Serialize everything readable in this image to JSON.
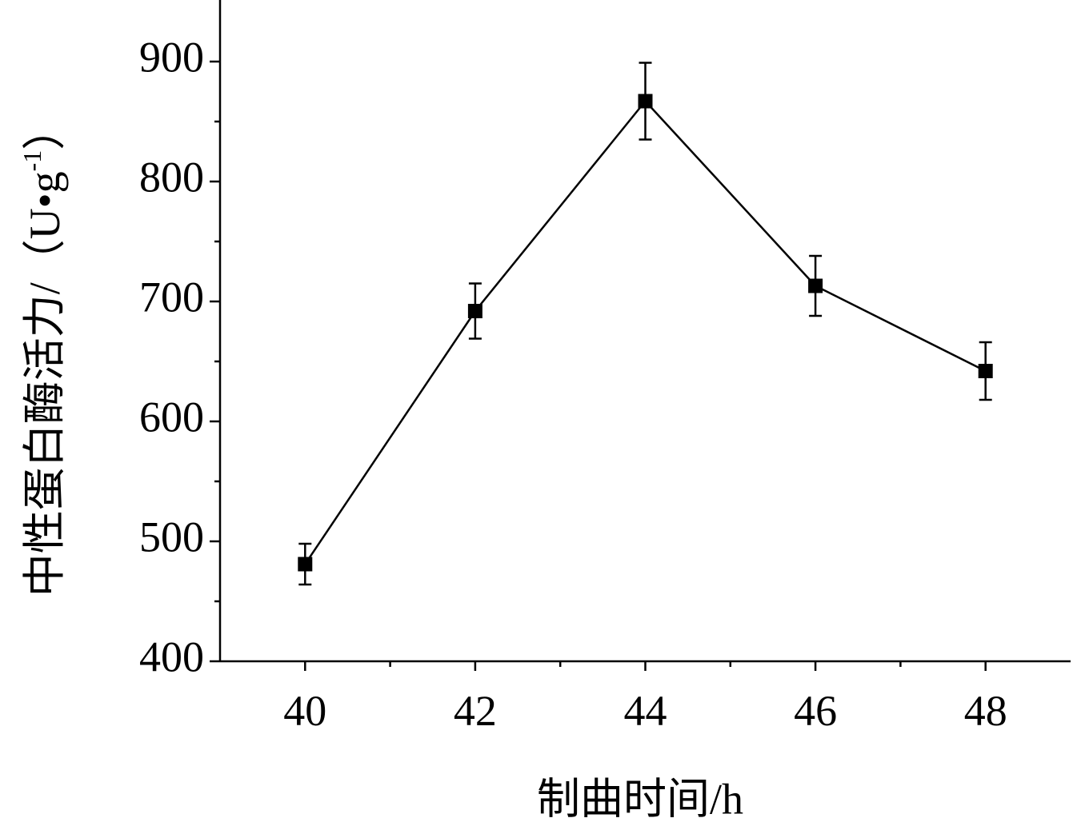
{
  "chart_data": {
    "type": "line",
    "xlabel": "制曲时间/h",
    "ylabel_parts": [
      "中性蛋白酶活力/（U•g",
      "-1",
      "）"
    ],
    "x": [
      40,
      42,
      44,
      46,
      48
    ],
    "series": [
      {
        "values": [
          481,
          692,
          867,
          713,
          642
        ],
        "errors": [
          17,
          23,
          32,
          25,
          24
        ],
        "color": "#000000",
        "marker": "square"
      }
    ],
    "xlim": [
      39,
      49
    ],
    "xticks": [
      40,
      42,
      44,
      46,
      48
    ],
    "xminor": [
      41,
      43,
      45,
      47
    ],
    "ylim": [
      400,
      950
    ],
    "yticks": [
      400,
      500,
      600,
      700,
      800,
      900
    ],
    "yminor": [
      450,
      550,
      650,
      750,
      850
    ],
    "grid": false
  }
}
